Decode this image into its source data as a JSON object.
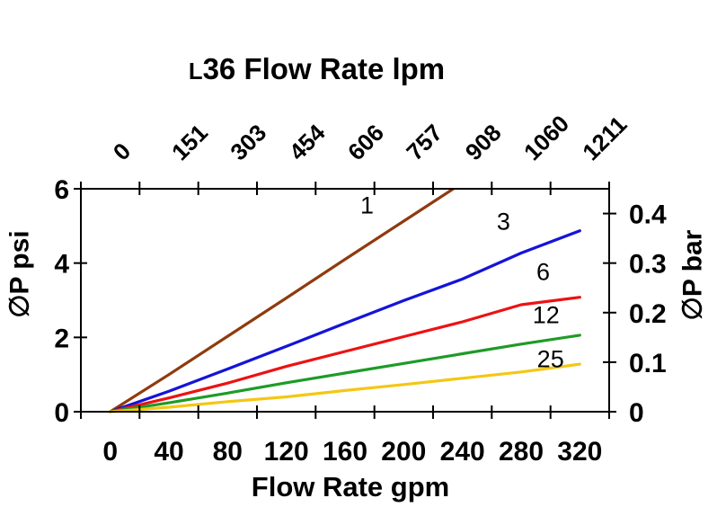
{
  "chart_data": {
    "type": "line",
    "title": "L36 Flow Rate lpm",
    "grid": false,
    "legend": "inline-labels-on-curves",
    "x_bottom": {
      "label": "Flow Rate gpm",
      "ticks": [
        "0",
        "40",
        "80",
        "120",
        "160",
        "200",
        "240",
        "280",
        "320"
      ],
      "tick_style": "labels-centered-between-boundary-ticks"
    },
    "x_top": {
      "label": "L36 Flow Rate lpm",
      "ticks": [
        "0",
        "151",
        "303",
        "454",
        "606",
        "757",
        "908",
        "1060",
        "1211"
      ],
      "tick_label_rotation_deg": -45
    },
    "y_left": {
      "label": "∅P psi",
      "ticks": [
        "0",
        "2",
        "4",
        "6"
      ],
      "range": [
        0,
        6
      ]
    },
    "y_right": {
      "label": "∅P bar",
      "ticks": [
        "0",
        "0.1",
        "0.2",
        "0.3",
        "0.4"
      ],
      "range": [
        0,
        0.45
      ]
    },
    "series": [
      {
        "label": "1",
        "color": "#8e3b0e",
        "gpm": [
          0,
          40,
          80,
          120,
          160,
          200,
          240
        ],
        "psi": [
          0,
          1.0,
          2.03,
          3.06,
          4.1,
          5.13,
          6.16
        ],
        "note": "clipped at top of plot (reaches 6 psi near 234 gpm)",
        "label_at": {
          "gpm": 175,
          "psi": 5.55
        }
      },
      {
        "label": "3",
        "color": "#1414d9",
        "gpm": [
          0,
          40,
          80,
          120,
          160,
          200,
          240,
          280,
          320
        ],
        "psi": [
          0,
          0.55,
          1.15,
          1.76,
          2.38,
          2.99,
          3.57,
          4.27,
          4.87
        ],
        "label_at": {
          "gpm": 268,
          "psi": 5.12
        }
      },
      {
        "label": "6",
        "color": "#ec1212",
        "gpm": [
          0,
          40,
          80,
          120,
          160,
          200,
          240,
          280,
          320
        ],
        "psi": [
          0,
          0.37,
          0.77,
          1.22,
          1.62,
          2.02,
          2.42,
          2.88,
          3.08
        ],
        "label_at": {
          "gpm": 295,
          "psi": 3.76
        }
      },
      {
        "label": "12",
        "color": "#1e9b26",
        "gpm": [
          0,
          40,
          80,
          120,
          160,
          200,
          240,
          280,
          320
        ],
        "psi": [
          0,
          0.24,
          0.5,
          0.78,
          1.04,
          1.3,
          1.56,
          1.82,
          2.06
        ],
        "label_at": {
          "gpm": 297,
          "psi": 2.6
        }
      },
      {
        "label": "25",
        "color": "#f4c713",
        "gpm": [
          0,
          40,
          80,
          120,
          160,
          200,
          240,
          280,
          320
        ],
        "psi": [
          0,
          0.12,
          0.27,
          0.4,
          0.57,
          0.73,
          0.9,
          1.07,
          1.28
        ],
        "label_at": {
          "gpm": 300,
          "psi": 1.42
        }
      }
    ]
  }
}
